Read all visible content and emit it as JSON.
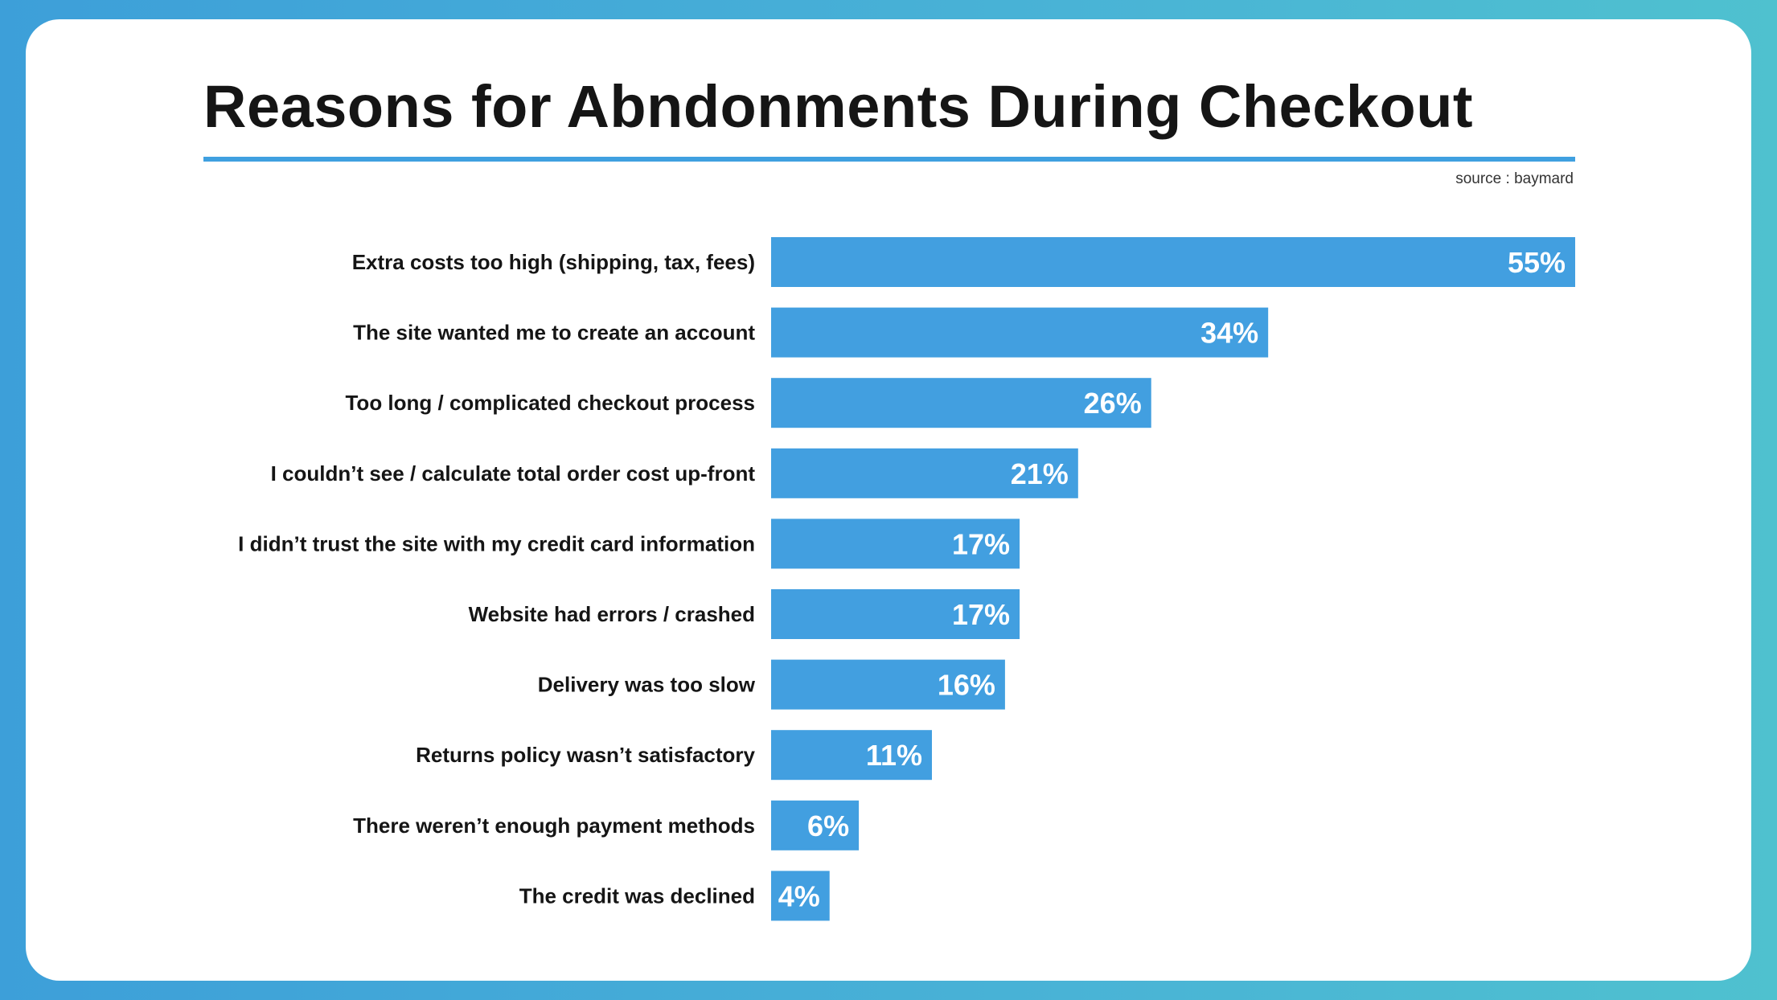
{
  "chart_data": {
    "type": "bar",
    "orientation": "horizontal",
    "title": "Reasons for Abndonments During Checkout",
    "source": "source : baymard",
    "categories": [
      "Extra costs too high (shipping, tax, fees)",
      "The site wanted me to create an account",
      "Too long / complicated checkout process",
      "I couldn’t see / calculate total order cost up-front",
      "I didn’t trust the site with my credit card information",
      "Website had errors / crashed",
      "Delivery was too slow",
      "Returns policy wasn’t satisfactory",
      "There weren’t enough payment methods",
      "The credit was declined"
    ],
    "values": [
      55,
      34,
      26,
      21,
      17,
      17,
      16,
      11,
      6,
      4
    ],
    "value_labels": [
      "55%",
      "34%",
      "26%",
      "21%",
      "17%",
      "17%",
      "16%",
      "11%",
      "6%",
      "4%"
    ],
    "xlim": [
      0,
      55
    ],
    "grid": false,
    "legend": "none",
    "colors": {
      "bar": "#429fe0",
      "rule": "#3fa0e0",
      "text": "#151515",
      "background": "#ffffff"
    }
  }
}
